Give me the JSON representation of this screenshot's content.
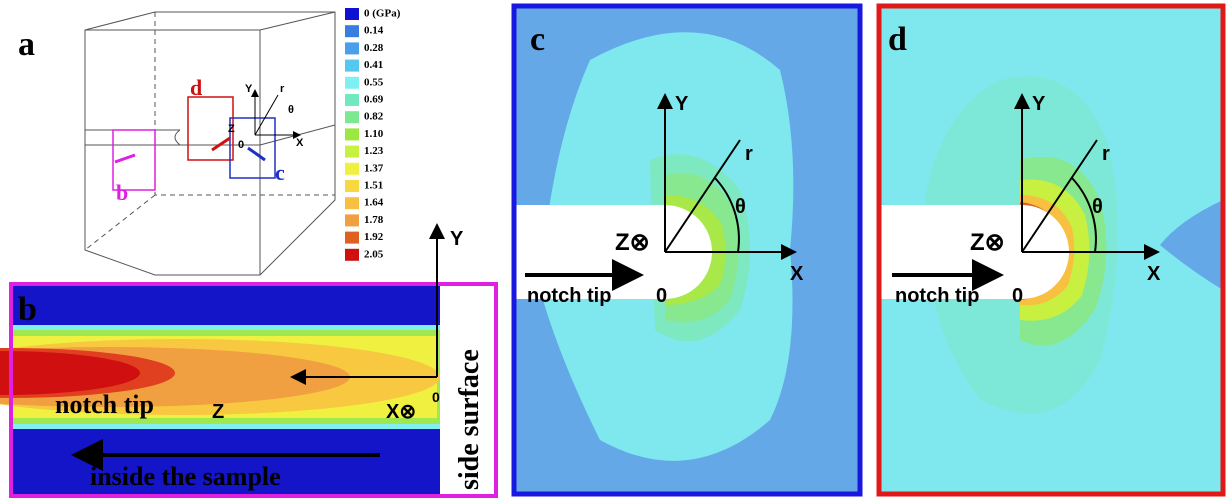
{
  "panel_a": {
    "label": "a",
    "d": "d",
    "c": "c",
    "b": "b",
    "y": "Y",
    "r": "r",
    "theta": "θ",
    "x": "X",
    "z": "Z",
    "origin": "0"
  },
  "colorbar": [
    {
      "label": "0 (GPa)",
      "color": "#1010d0"
    },
    {
      "label": "0.14",
      "color": "#3a7de0"
    },
    {
      "label": "0.28",
      "color": "#4aa0e8"
    },
    {
      "label": "0.41",
      "color": "#55c8f0"
    },
    {
      "label": "0.55",
      "color": "#7ef0f4"
    },
    {
      "label": "0.69",
      "color": "#70e8c0"
    },
    {
      "label": "0.82",
      "color": "#7ce890"
    },
    {
      "label": "1.10",
      "color": "#9ae840"
    },
    {
      "label": "1.23",
      "color": "#c8f040"
    },
    {
      "label": "1.37",
      "color": "#f0f040"
    },
    {
      "label": "1.51",
      "color": "#f8d840"
    },
    {
      "label": "1.64",
      "color": "#f8c040"
    },
    {
      "label": "1.78",
      "color": "#f0a040"
    },
    {
      "label": "1.92",
      "color": "#e06020"
    },
    {
      "label": "2.05",
      "color": "#d01010"
    }
  ],
  "panel_b": {
    "label": "b",
    "notch_tip": "notch tip",
    "z": "Z",
    "x": "X⊗",
    "origin": "0",
    "y": "Y",
    "inside": "inside the sample",
    "side": "side surface"
  },
  "panel_c": {
    "label": "c",
    "y": "Y",
    "r": "r",
    "theta": "θ",
    "z": "Z⊗",
    "notch_tip": "notch tip",
    "origin": "0",
    "x": "X"
  },
  "panel_d": {
    "label": "d",
    "y": "Y",
    "r": "r",
    "theta": "θ",
    "z": "Z⊗",
    "notch_tip": "notch tip",
    "origin": "0",
    "x": "X"
  }
}
